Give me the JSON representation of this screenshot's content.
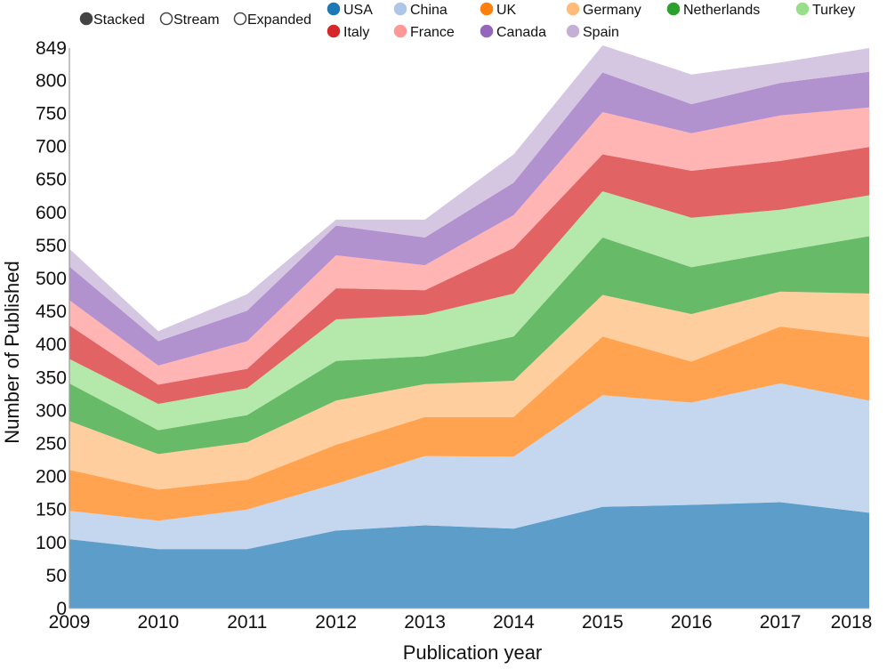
{
  "controls": {
    "stacked_label": "Stacked",
    "stream_label": "Stream",
    "expanded_label": "Expanded",
    "selected": "Stacked"
  },
  "chart_data": {
    "type": "area",
    "title": "",
    "xlabel": "Publication year",
    "ylabel": "Number of Published",
    "stacked": true,
    "x": [
      2009,
      2010,
      2011,
      2012,
      2013,
      2014,
      2015,
      2016,
      2017,
      2018
    ],
    "ylim": [
      0,
      849
    ],
    "yticks": [
      0,
      50,
      100,
      150,
      200,
      250,
      300,
      350,
      400,
      450,
      500,
      550,
      600,
      650,
      700,
      750,
      800,
      849
    ],
    "grid": false,
    "legend_position": "top",
    "series": [
      {
        "name": "USA",
        "color": "#1f77b4",
        "values": [
          105,
          90,
          90,
          118,
          126,
          121,
          154,
          157,
          161,
          145
        ]
      },
      {
        "name": "China",
        "color": "#aec7e8",
        "values": [
          43,
          43,
          60,
          71,
          105,
          109,
          169,
          155,
          180,
          170
        ]
      },
      {
        "name": "UK",
        "color": "#ff7f0e",
        "values": [
          62,
          47,
          45,
          59,
          59,
          60,
          89,
          62,
          86,
          96
        ]
      },
      {
        "name": "Germany",
        "color": "#ffbb78",
        "values": [
          74,
          54,
          57,
          67,
          50,
          55,
          63,
          72,
          53,
          66
        ]
      },
      {
        "name": "Netherlands",
        "color": "#2ca02c",
        "values": [
          57,
          36,
          41,
          60,
          42,
          67,
          87,
          71,
          61,
          87
        ]
      },
      {
        "name": "Turkey",
        "color": "#98df8a",
        "values": [
          37,
          40,
          41,
          63,
          63,
          65,
          70,
          75,
          63,
          62
        ]
      },
      {
        "name": "Italy",
        "color": "#d62728",
        "values": [
          51,
          29,
          29,
          47,
          37,
          69,
          56,
          71,
          74,
          73
        ]
      },
      {
        "name": "France",
        "color": "#ff9896",
        "values": [
          38,
          29,
          42,
          50,
          38,
          50,
          64,
          57,
          69,
          60
        ]
      },
      {
        "name": "Canada",
        "color": "#9467bd",
        "values": [
          51,
          37,
          46,
          45,
          42,
          49,
          60,
          44,
          49,
          54
        ]
      },
      {
        "name": "Spain",
        "color": "#c5b0d5",
        "values": [
          27,
          15,
          25,
          9,
          27,
          43,
          41,
          45,
          31,
          36
        ]
      }
    ]
  }
}
